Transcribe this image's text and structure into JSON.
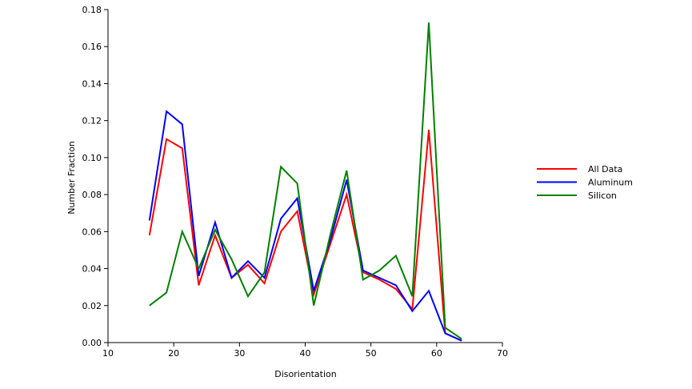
{
  "chart_data": {
    "type": "line",
    "xlabel": "Disorientation",
    "ylabel": "Number Fraction",
    "xlim": [
      10,
      70
    ],
    "ylim": [
      0,
      0.18
    ],
    "xticks": [
      10,
      20,
      30,
      40,
      50,
      60,
      70
    ],
    "yticks": [
      "0.00",
      "0.02",
      "0.04",
      "0.06",
      "0.08",
      "0.10",
      "0.12",
      "0.14",
      "0.16",
      "0.18"
    ],
    "grid": false,
    "legend_position": "right",
    "x": [
      16.3,
      18.9,
      21.3,
      23.8,
      26.3,
      28.8,
      31.3,
      33.8,
      36.3,
      38.8,
      41.3,
      43.8,
      46.3,
      48.8,
      51.3,
      53.8,
      56.3,
      58.8,
      61.3,
      63.8
    ],
    "series": [
      {
        "name": "All Data",
        "color": "#ff0000",
        "values": [
          0.058,
          0.11,
          0.105,
          0.031,
          0.058,
          0.035,
          0.042,
          0.032,
          0.06,
          0.071,
          0.026,
          0.053,
          0.08,
          0.038,
          0.034,
          0.029,
          0.018,
          0.115,
          0.005,
          0.001
        ]
      },
      {
        "name": "Aluminum",
        "color": "#0000ff",
        "values": [
          0.066,
          0.125,
          0.118,
          0.036,
          0.065,
          0.035,
          0.044,
          0.035,
          0.067,
          0.078,
          0.028,
          0.055,
          0.088,
          0.039,
          0.035,
          0.031,
          0.017,
          0.028,
          0.005,
          0.001
        ]
      },
      {
        "name": "Silicon",
        "color": "#008000",
        "values": [
          0.02,
          0.027,
          0.06,
          0.04,
          0.061,
          0.045,
          0.025,
          0.038,
          0.095,
          0.086,
          0.02,
          0.058,
          0.093,
          0.034,
          0.039,
          0.047,
          0.025,
          0.173,
          0.008,
          0.002
        ]
      }
    ]
  }
}
